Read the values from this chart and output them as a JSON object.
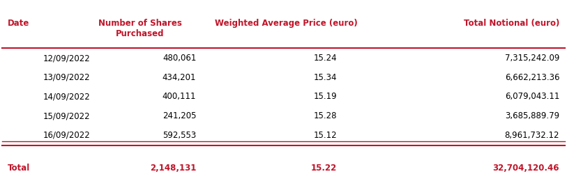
{
  "headers": [
    "Date",
    "Number of Shares\nPurchased",
    "Weighted Average Price (euro)",
    "Total Notional (euro)"
  ],
  "rows": [
    [
      "12/09/2022",
      "480,061",
      "15.24",
      "7,315,242.09"
    ],
    [
      "13/09/2022",
      "434,201",
      "15.34",
      "6,662,213.36"
    ],
    [
      "14/09/2022",
      "400,111",
      "15.19",
      "6,079,043.11"
    ],
    [
      "15/09/2022",
      "241,205",
      "15.28",
      "3,685,889.79"
    ],
    [
      "16/09/2022",
      "592,553",
      "15.12",
      "8,961,732.12"
    ]
  ],
  "total_row": [
    "Total",
    "2,148,131",
    "15.22",
    "32,704,120.46"
  ],
  "header_color": "#C0152A",
  "total_color": "#C0152A",
  "text_color_body": "#000000",
  "line_color": "#C0152A",
  "bg_color": "#FFFFFF",
  "header_fontsize": 8.5,
  "body_fontsize": 8.5,
  "total_fontsize": 8.5
}
